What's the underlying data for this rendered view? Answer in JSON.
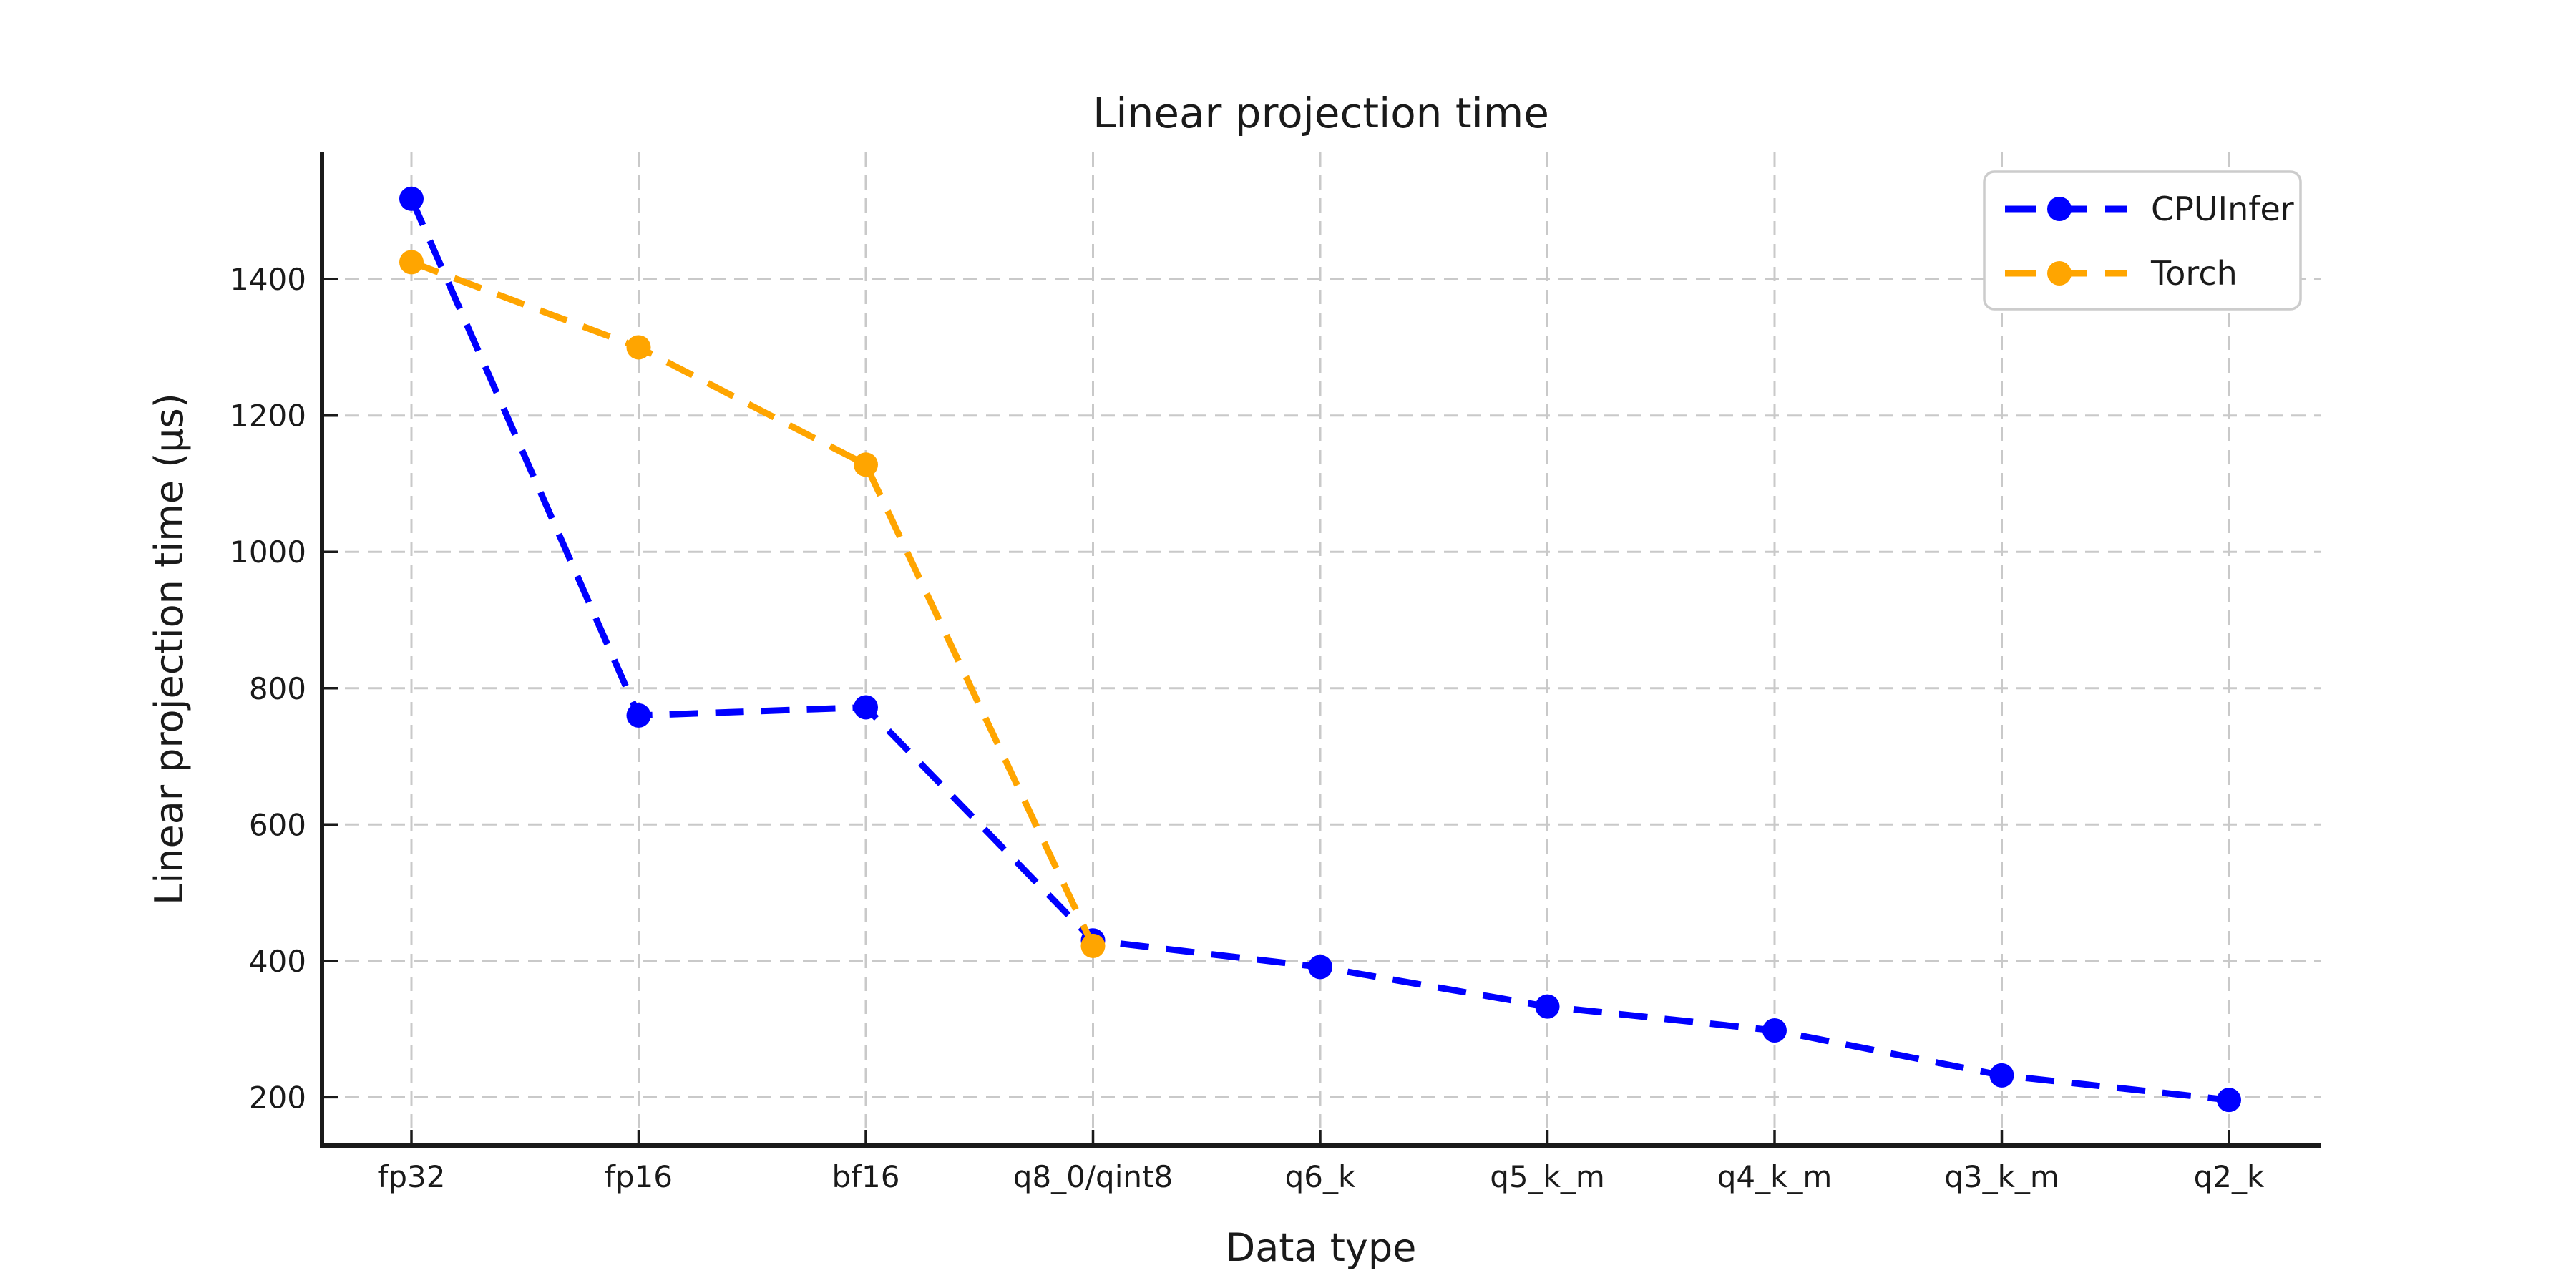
{
  "chart_data": {
    "type": "line",
    "title": "Linear projection time",
    "xlabel": "Data type",
    "ylabel": "Linear projection time (µs)",
    "categories": [
      "fp32",
      "fp16",
      "bf16",
      "q8_0/qint8",
      "q6_k",
      "q5_k_m",
      "q4_k_m",
      "q3_k_m",
      "q2_k"
    ],
    "series": [
      {
        "name": "CPUInfer",
        "color": "#0000ff",
        "values": [
          1518,
          760,
          772,
          430,
          391,
          333,
          298,
          232,
          196
        ]
      },
      {
        "name": "Torch",
        "color": "#ffa500",
        "values": [
          1425,
          1300,
          1128,
          422
        ]
      }
    ],
    "yticks": [
      200,
      400,
      600,
      800,
      1000,
      1200,
      1400
    ],
    "ylim": [
      129,
      1586
    ],
    "grid": true,
    "grid_style": "dashed",
    "line_style": "dashed",
    "marker": "circle",
    "legend_position": "upper-right",
    "colors": {
      "grid": "#c9c9c9",
      "spine": "#1a1a1a",
      "text": "#1a1a1a",
      "legend_border": "#cccccc",
      "background": "#ffffff"
    }
  }
}
